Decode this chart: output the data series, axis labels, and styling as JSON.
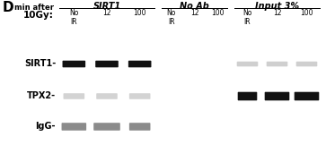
{
  "panel_letter": "D",
  "group_labels": [
    "SIRT1",
    "No Ab",
    "Input 3%"
  ],
  "header1": "min after",
  "header2": "10Gy:",
  "col_labels": [
    "No\nIR",
    "12",
    "100",
    "No\nIR",
    "12",
    "100",
    "No\nIR",
    "12",
    "100"
  ],
  "row_labels": [
    "SIRT1-",
    "TPX2-",
    "IgG-"
  ],
  "blot_bg": "#d6d6d6",
  "white_gap": "#ffffff",
  "row_bg_color": "#d6d6d6",
  "band_dark": "#111111",
  "band_medium": "#777777",
  "band_light": "#bbbbbb",
  "band_veryfaint": "#b0b0b0"
}
